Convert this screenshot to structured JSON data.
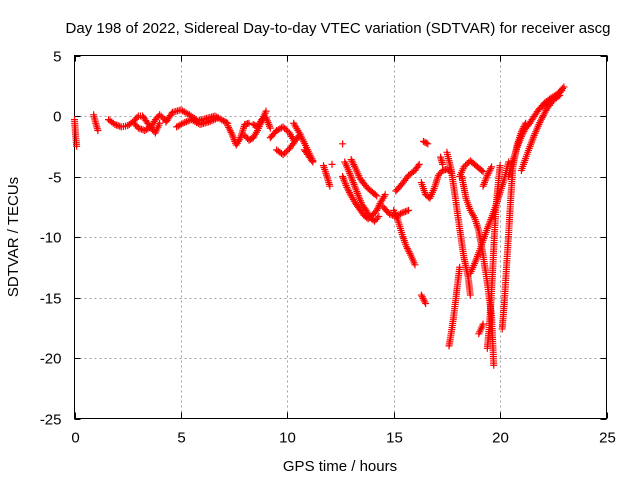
{
  "chart_data": {
    "type": "scatter",
    "title": "Day 198 of 2022, Sidereal Day-to-day VTEC variation (SDTVAR) for receiver ascg",
    "xlabel": "GPS time / hours",
    "ylabel": "SDTVAR / TECUs",
    "xlim": [
      0,
      25
    ],
    "ylim": [
      -25,
      5
    ],
    "xticks": [
      0,
      5,
      10,
      15,
      20,
      25
    ],
    "yticks": [
      -25,
      -20,
      -15,
      -10,
      -5,
      0,
      5
    ],
    "xtick_labels": [
      "0",
      "5",
      "10",
      "15",
      "20",
      "25"
    ],
    "ytick_labels": [
      "-25",
      "-20",
      "-15",
      "-10",
      "-5",
      "0",
      "5"
    ],
    "grid": true,
    "marker": "+",
    "color": "#ff0000",
    "series": [
      {
        "name": "s1",
        "x": [
          0.0,
          0.05,
          0.1
        ],
        "y": [
          -0.3,
          -1.5,
          -2.5
        ]
      },
      {
        "name": "s2",
        "x": [
          0.9,
          1.0,
          1.1
        ],
        "y": [
          0.1,
          -0.6,
          -1.2
        ]
      },
      {
        "name": "s3",
        "x": [
          1.6,
          1.9,
          2.2,
          2.5,
          2.8,
          3.0,
          3.2,
          3.4,
          3.6,
          3.8,
          4.0
        ],
        "y": [
          -0.3,
          -0.7,
          -0.9,
          -0.8,
          -0.4,
          0.0,
          0.0,
          -0.5,
          -1.0,
          -1.4,
          -0.6
        ]
      },
      {
        "name": "s4",
        "x": [
          2.8,
          3.0,
          3.3,
          3.6,
          3.8,
          4.0,
          4.3
        ],
        "y": [
          -0.6,
          -1.0,
          -1.2,
          -0.9,
          -0.3,
          0.1,
          -0.4
        ]
      },
      {
        "name": "s5",
        "x": [
          4.3,
          4.6,
          5.0,
          5.4,
          5.8,
          6.2,
          6.6,
          7.0,
          7.2
        ],
        "y": [
          -0.5,
          0.3,
          0.5,
          0.1,
          -0.4,
          -0.2,
          0.0,
          -0.4,
          -0.6
        ]
      },
      {
        "name": "s6",
        "x": [
          4.8,
          5.1,
          5.5,
          5.9,
          6.3,
          6.7
        ],
        "y": [
          -0.9,
          -0.6,
          -0.3,
          -0.7,
          -0.5,
          -0.2
        ]
      },
      {
        "name": "s7",
        "x": [
          7.2,
          7.4,
          7.6,
          7.8,
          8.0,
          8.2
        ],
        "y": [
          -0.8,
          -1.5,
          -2.4,
          -1.8,
          -0.7,
          -0.6
        ]
      },
      {
        "name": "s8",
        "x": [
          8.0,
          8.2,
          8.4,
          8.6,
          8.8,
          9.0
        ],
        "y": [
          -1.6,
          -2.0,
          -1.8,
          -1.2,
          -0.4,
          0.4
        ]
      },
      {
        "name": "s9",
        "x": [
          8.4,
          8.6,
          8.8,
          9.0,
          9.2
        ],
        "y": [
          -0.7,
          -0.9,
          -0.3,
          -0.1,
          -1.0
        ]
      },
      {
        "name": "s10",
        "x": [
          9.2,
          9.5,
          9.8,
          10.1,
          10.3
        ],
        "y": [
          -1.8,
          -1.2,
          -0.9,
          -1.4,
          -2.0
        ]
      },
      {
        "name": "s11",
        "x": [
          9.5,
          9.8,
          10.1,
          10.4,
          10.6
        ],
        "y": [
          -2.8,
          -3.2,
          -2.7,
          -2.0,
          -1.5
        ]
      },
      {
        "name": "s12",
        "x": [
          10.3,
          10.6,
          10.9,
          11.2
        ],
        "y": [
          -0.6,
          -1.5,
          -2.6,
          -3.7
        ]
      },
      {
        "name": "s13",
        "x": [
          10.8,
          11.0,
          11.2
        ],
        "y": [
          -2.8,
          -3.3,
          -3.8
        ]
      },
      {
        "name": "s14",
        "x": [
          11.7,
          11.9,
          12.0
        ],
        "y": [
          -4.1,
          -5.2,
          -5.8
        ]
      },
      {
        "name": "s15",
        "x": [
          12.1
        ],
        "y": [
          -4.0
        ]
      },
      {
        "name": "s16",
        "x": [
          12.6
        ],
        "y": [
          -2.3
        ]
      },
      {
        "name": "s17",
        "x": [
          12.7,
          12.9,
          13.1,
          13.3,
          13.5,
          13.7,
          13.9,
          14.1,
          14.3
        ],
        "y": [
          -3.8,
          -4.6,
          -5.5,
          -6.4,
          -7.3,
          -7.8,
          -8.4,
          -8.7,
          -8.3
        ]
      },
      {
        "name": "s18",
        "x": [
          12.6,
          12.8,
          13.0,
          13.2,
          13.4,
          13.6,
          13.8,
          14.0,
          14.2,
          14.4,
          14.6
        ],
        "y": [
          -5.0,
          -5.9,
          -6.6,
          -7.2,
          -7.7,
          -8.2,
          -8.5,
          -8.2,
          -7.8,
          -7.1,
          -6.5
        ]
      },
      {
        "name": "s19",
        "x": [
          13.0,
          13.2,
          13.4,
          13.6,
          13.8,
          14.0,
          14.2
        ],
        "y": [
          -3.6,
          -4.3,
          -5.1,
          -5.6,
          -6.0,
          -6.3,
          -6.6
        ]
      },
      {
        "name": "s20",
        "x": [
          14.5,
          14.8,
          15.1,
          15.4,
          15.7
        ],
        "y": [
          -7.5,
          -8.1,
          -8.3,
          -8.0,
          -7.8
        ]
      },
      {
        "name": "s21",
        "x": [
          15.0,
          15.2,
          15.4,
          15.6,
          15.8,
          16.0
        ],
        "y": [
          -7.8,
          -8.6,
          -9.8,
          -10.8,
          -11.5,
          -12.3
        ]
      },
      {
        "name": "s22",
        "x": [
          15.1,
          15.4,
          15.7,
          16.0,
          16.2
        ],
        "y": [
          -6.2,
          -5.6,
          -4.9,
          -4.5,
          -4.0
        ]
      },
      {
        "name": "s23",
        "x": [
          16.3,
          16.5
        ],
        "y": [
          -14.8,
          -15.5
        ]
      },
      {
        "name": "s24",
        "x": [
          16.3,
          16.5,
          16.7,
          16.9,
          17.1,
          17.3,
          17.5,
          17.7
        ],
        "y": [
          -5.5,
          -6.5,
          -6.8,
          -6.0,
          -4.9,
          -4.5,
          -4.4,
          -4.6
        ]
      },
      {
        "name": "s25",
        "x": [
          16.4,
          16.6
        ],
        "y": [
          -2.1,
          -2.3
        ]
      },
      {
        "name": "s26",
        "x": [
          17.2,
          17.3
        ],
        "y": [
          -3.4,
          -4.0
        ]
      },
      {
        "name": "s27",
        "x": [
          17.6,
          17.7,
          17.8,
          17.9,
          18.0,
          18.1
        ],
        "y": [
          -19.0,
          -18.0,
          -16.8,
          -15.4,
          -13.9,
          -12.5
        ]
      },
      {
        "name": "s28",
        "x": [
          17.5,
          17.7,
          17.9,
          18.1,
          18.3,
          18.5,
          18.6
        ],
        "y": [
          -3.0,
          -4.4,
          -6.8,
          -9.3,
          -11.7,
          -13.3,
          -14.8
        ]
      },
      {
        "name": "s29",
        "x": [
          18.1,
          18.3,
          18.6,
          19.0,
          19.2
        ],
        "y": [
          -5.0,
          -4.2,
          -3.7,
          -4.3,
          -4.6
        ]
      },
      {
        "name": "s30",
        "x": [
          18.2,
          18.4,
          18.6,
          18.8,
          19.0,
          19.2,
          19.4,
          19.6,
          19.7
        ],
        "y": [
          -5.0,
          -6.8,
          -7.8,
          -8.4,
          -9.5,
          -11.5,
          -13.8,
          -16.5,
          -20.6
        ]
      },
      {
        "name": "s31",
        "x": [
          18.6,
          18.8,
          19.0,
          19.2,
          19.4,
          19.6,
          19.8,
          20.0,
          20.2,
          20.4
        ],
        "y": [
          -13.0,
          -12.2,
          -11.3,
          -10.3,
          -9.3,
          -8.4,
          -7.4,
          -6.3,
          -5.2,
          -3.8
        ]
      },
      {
        "name": "s32",
        "x": [
          19.0,
          19.2
        ],
        "y": [
          -18.0,
          -17.2
        ]
      },
      {
        "name": "s33",
        "x": [
          19.4,
          19.5,
          19.6,
          19.7,
          19.8,
          20.0
        ],
        "y": [
          -19.2,
          -17.3,
          -14.5,
          -11.0,
          -7.6,
          -4.1
        ]
      },
      {
        "name": "s34",
        "x": [
          19.2,
          19.4,
          19.6
        ],
        "y": [
          -5.8,
          -4.9,
          -4.2
        ]
      },
      {
        "name": "s35",
        "x": [
          20.1,
          20.2,
          20.3,
          20.4,
          20.5,
          20.6,
          20.8,
          21.0,
          21.2
        ],
        "y": [
          -17.6,
          -15.4,
          -12.5,
          -9.8,
          -6.8,
          -4.2,
          -2.4,
          -1.3,
          -0.6
        ]
      },
      {
        "name": "s36",
        "x": [
          20.4,
          20.6,
          20.8,
          21.0,
          21.2,
          21.4
        ],
        "y": [
          -5.0,
          -3.7,
          -2.6,
          -1.7,
          -1.0,
          -0.6
        ]
      },
      {
        "name": "s37",
        "x": [
          21.0,
          21.3,
          21.6,
          21.9,
          22.2,
          22.5,
          22.8
        ],
        "y": [
          -4.5,
          -3.0,
          -1.6,
          -0.4,
          0.6,
          1.3,
          1.7
        ]
      },
      {
        "name": "s38",
        "x": [
          21.2,
          21.5,
          21.8,
          22.1,
          22.4,
          22.7,
          23.0
        ],
        "y": [
          -1.0,
          -0.3,
          0.5,
          1.1,
          1.5,
          1.8,
          2.4
        ]
      },
      {
        "name": "s39",
        "x": [
          22.0,
          22.3,
          22.6,
          22.9
        ],
        "y": [
          0.8,
          1.2,
          1.6,
          2.1
        ]
      }
    ]
  }
}
